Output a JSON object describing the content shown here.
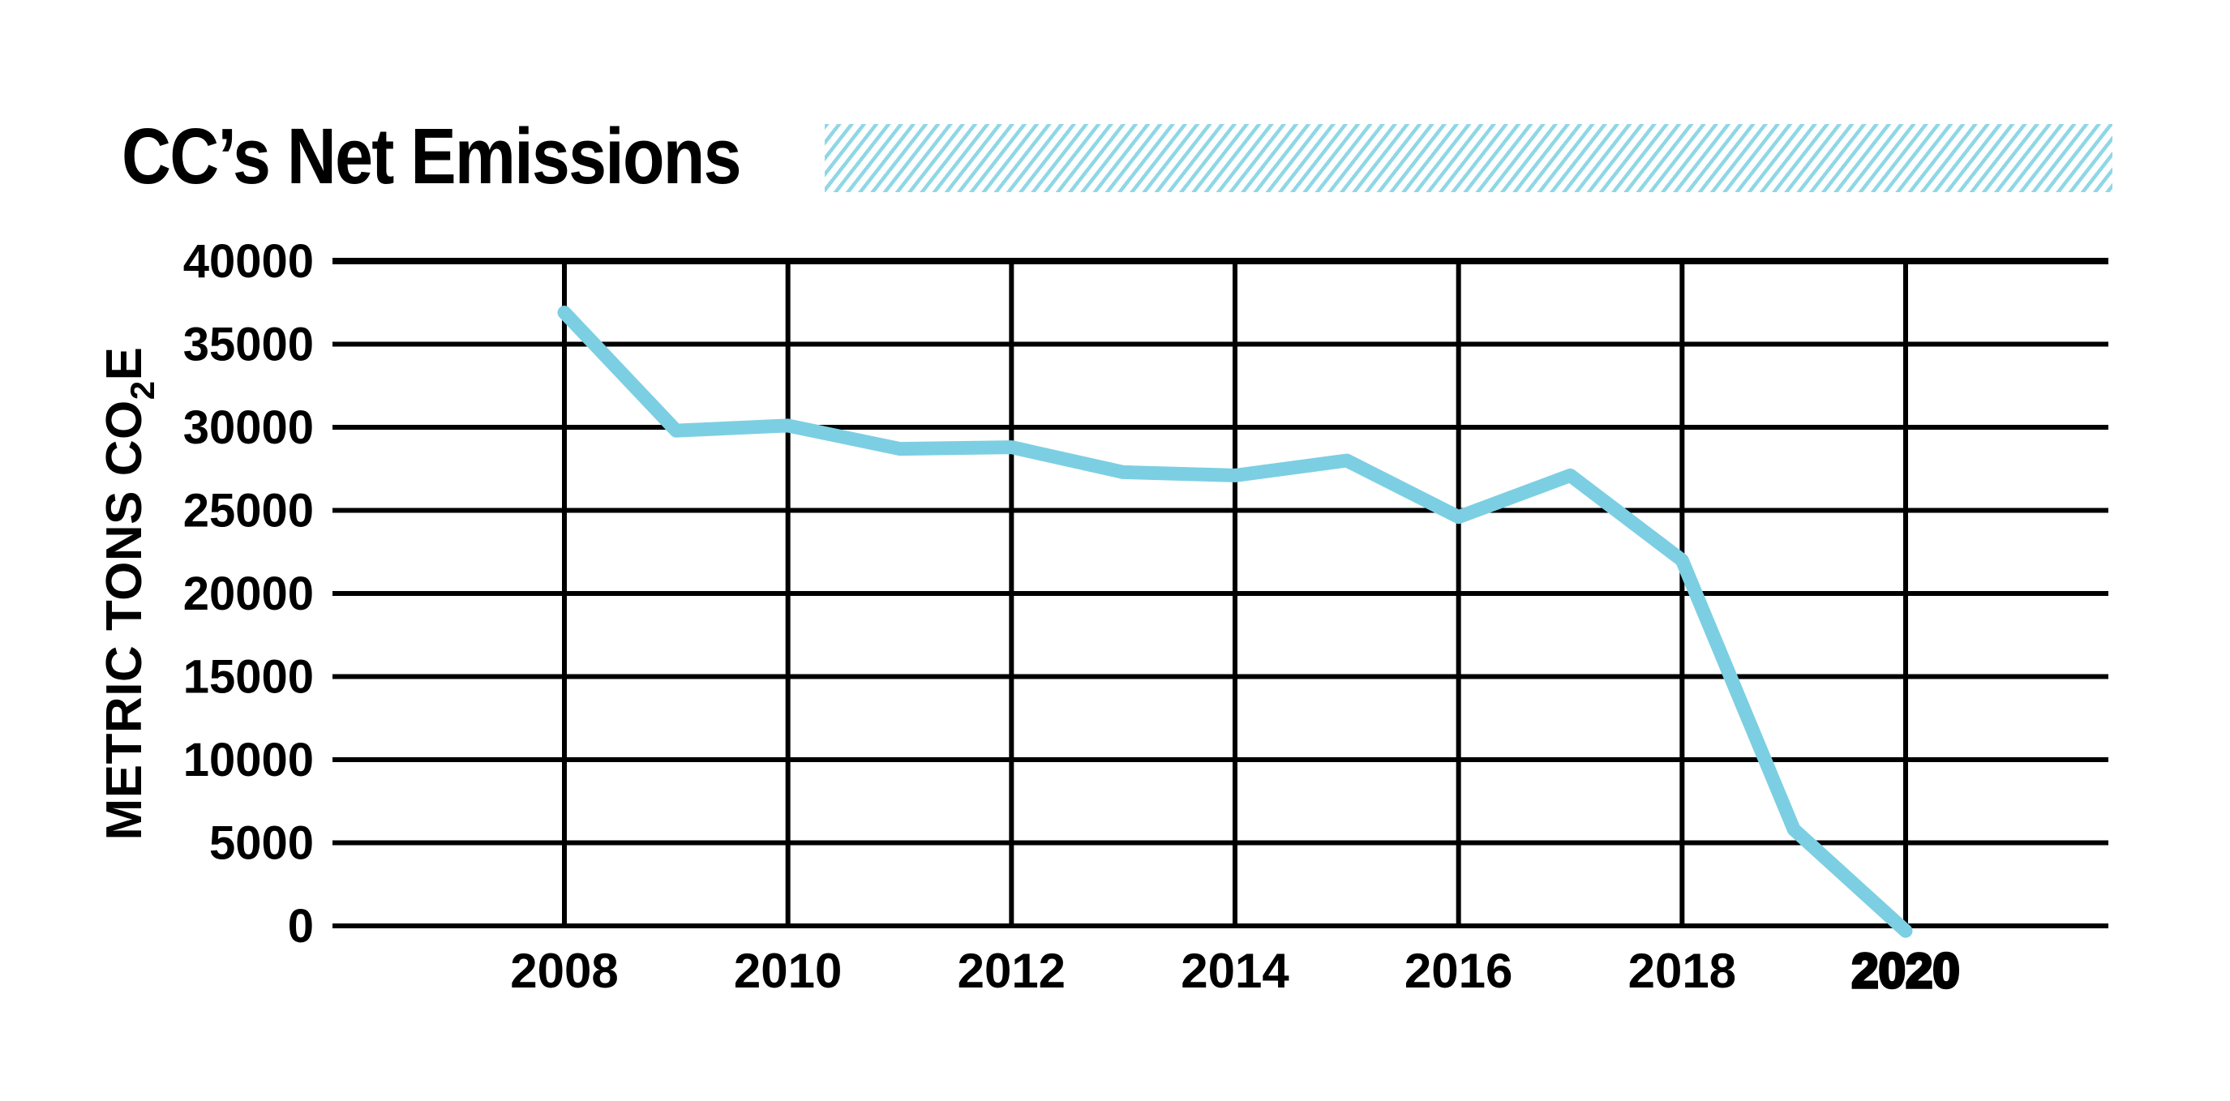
{
  "header": {
    "title": "CC’s Net Emissions",
    "banner_stripe_color": "#8FD7E6",
    "banner_background": "#FFFFFF"
  },
  "chart_data": {
    "type": "line",
    "title": "CC’s Net Emissions",
    "ylabel": "METRIC TONS CO2E",
    "ylabel_parts": {
      "main": "METRIC TONS CO",
      "subscript": "2",
      "suffix": "E"
    },
    "x": [
      2008,
      2009,
      2010,
      2011,
      2012,
      2013,
      2014,
      2015,
      2016,
      2017,
      2018,
      2019,
      2020
    ],
    "values": [
      36900,
      29800,
      30100,
      28700,
      28800,
      27300,
      27100,
      28000,
      24600,
      27100,
      22000,
      5800,
      -300
    ],
    "xticks": [
      2008,
      2010,
      2012,
      2014,
      2016,
      2018,
      2020
    ],
    "yticks": [
      0,
      5000,
      10000,
      15000,
      20000,
      25000,
      30000,
      35000,
      40000
    ],
    "ylim": [
      0,
      40000
    ],
    "emphasized_xtick": 2020,
    "grid": "on",
    "legend_position": "none",
    "line_color": "#7CCFE2",
    "grid_color": "#000000",
    "text_color": "#000000"
  }
}
